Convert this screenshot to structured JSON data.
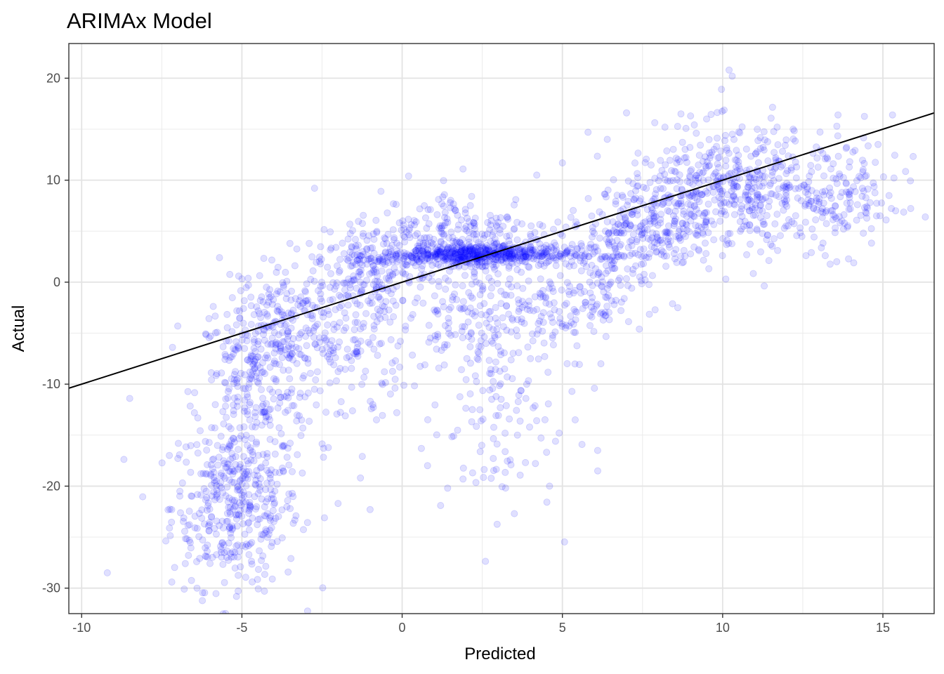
{
  "chart_data": {
    "type": "scatter",
    "title": "ARIMAx Model",
    "xlabel": "Predicted",
    "ylabel": "Actual",
    "xlim": [
      -10.4,
      16.6
    ],
    "ylim": [
      -32.5,
      23.4
    ],
    "x_ticks": [
      -10,
      -5,
      0,
      5,
      10,
      15
    ],
    "x_tick_labels": [
      "-10",
      "-5",
      "0",
      "5",
      "10",
      "15"
    ],
    "y_ticks": [
      -30,
      -20,
      -10,
      0,
      10,
      20
    ],
    "y_tick_labels": [
      "-30",
      "-20",
      "-10",
      "0",
      "10",
      "20"
    ],
    "grid": true,
    "reference_line": {
      "label": "",
      "slope": 1,
      "intercept": 0,
      "color": "#000000"
    },
    "series": [
      {
        "color": "#0000ff",
        "opacity": 0.12,
        "clusters": [
          {
            "cx": -5.2,
            "cy": -22,
            "sx": 1.0,
            "sy": 4.0,
            "n": 380,
            "rho": 0.0
          },
          {
            "cx": -4.6,
            "cy": -10,
            "sx": 0.9,
            "sy": 5.0,
            "n": 280,
            "rho": 0.1
          },
          {
            "cx": -3.8,
            "cy": -4,
            "sx": 0.8,
            "sy": 3.0,
            "n": 120,
            "rho": 0.2
          },
          {
            "cx": -1.8,
            "cy": -6,
            "sx": 1.1,
            "sy": 4.5,
            "n": 180,
            "rho": 0.2
          },
          {
            "cx": -1.0,
            "cy": 1,
            "sx": 0.9,
            "sy": 2.5,
            "n": 180,
            "rho": 0.3
          },
          {
            "cx": 2.3,
            "cy": 2.7,
            "sx": 1.5,
            "sy": 0.5,
            "n": 550,
            "rho": 0.0
          },
          {
            "cx": 2.0,
            "cy": 5,
            "sx": 1.4,
            "sy": 2.0,
            "n": 200,
            "rho": 0.0
          },
          {
            "cx": 2.5,
            "cy": -3,
            "sx": 1.4,
            "sy": 3.0,
            "n": 250,
            "rho": 0.0
          },
          {
            "cx": 2.8,
            "cy": -14,
            "sx": 1.0,
            "sy": 4.5,
            "n": 90,
            "rho": 0.0
          },
          {
            "cx": 5.8,
            "cy": 0,
            "sx": 0.8,
            "sy": 3.5,
            "n": 150,
            "rho": 0.3
          },
          {
            "cx": 7.8,
            "cy": 6,
            "sx": 1.0,
            "sy": 3.0,
            "n": 300,
            "rho": 0.3
          },
          {
            "cx": 10.5,
            "cy": 9,
            "sx": 1.3,
            "sy": 3.0,
            "n": 400,
            "rho": 0.0
          },
          {
            "cx": 13.6,
            "cy": 8.5,
            "sx": 1.0,
            "sy": 2.8,
            "n": 160,
            "rho": 0.0
          }
        ],
        "extra_points": [
          [
            10.2,
            20.8
          ],
          [
            10.3,
            20.2
          ],
          [
            7.0,
            16.6
          ],
          [
            8.7,
            16.5
          ],
          [
            9.0,
            16.3
          ],
          [
            13.6,
            16.4
          ],
          [
            15.3,
            16.4
          ],
          [
            -9.2,
            -28.5
          ],
          [
            -6.8,
            -30.1
          ],
          [
            -6.4,
            -30.0
          ],
          [
            -8.5,
            -11.4
          ],
          [
            -7.0,
            -4.3
          ],
          [
            -5.7,
            2.4
          ],
          [
            -5.1,
            0.6
          ],
          [
            0.2,
            10.4
          ],
          [
            1.9,
            11.1
          ],
          [
            4.2,
            10.5
          ],
          [
            5.0,
            11.7
          ],
          [
            -3.5,
            3.8
          ],
          [
            -2.9,
            3.8
          ],
          [
            12.6,
            2.6
          ],
          [
            13.2,
            2.6
          ],
          [
            10.1,
            0.3
          ],
          [
            8.6,
            -2.5
          ],
          [
            7.4,
            -4.6
          ],
          [
            6.1,
            -16.5
          ],
          [
            4.9,
            -14.8
          ],
          [
            5.4,
            -13.5
          ],
          [
            4.6,
            -20.0
          ],
          [
            3.5,
            -22.7
          ],
          [
            1.2,
            -21.9
          ],
          [
            -1.0,
            -22.3
          ],
          [
            -2.0,
            -21.7
          ],
          [
            -0.8,
            -13.5
          ],
          [
            -1.3,
            -19.2
          ],
          [
            0.6,
            -16.3
          ],
          [
            1.9,
            -19.3
          ],
          [
            2.2,
            -18.7
          ],
          [
            6.2,
            -8.0
          ],
          [
            6.0,
            -10.4
          ],
          [
            15.1,
            6.1
          ],
          [
            15.4,
            7.0
          ],
          [
            14.6,
            7.8
          ],
          [
            14.8,
            6.5
          ],
          [
            6.4,
            14.0
          ],
          [
            5.8,
            14.7
          ],
          [
            12.2,
            15.0
          ],
          [
            11.7,
            15.2
          ],
          [
            9.5,
            16.0
          ],
          [
            8.2,
            15.2
          ]
        ]
      }
    ]
  }
}
